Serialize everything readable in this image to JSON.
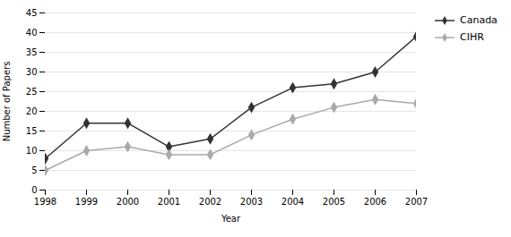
{
  "chart_data": {
    "type": "line",
    "x": [
      1998,
      1999,
      2000,
      2001,
      2002,
      2003,
      2004,
      2005,
      2006,
      2007
    ],
    "series": [
      {
        "name": "Canada",
        "color": "#333333",
        "marker": "diamond",
        "values": [
          8,
          17,
          17,
          11,
          13,
          21,
          26,
          27,
          30,
          39
        ]
      },
      {
        "name": "CIHR",
        "color": "#aaaaaa",
        "marker": "diamond",
        "values": [
          5,
          10,
          11,
          9,
          9,
          14,
          18,
          21,
          23,
          22
        ]
      }
    ],
    "xlabel": "Year",
    "ylabel": "Number of Papers",
    "xlim": [
      1998,
      2007
    ],
    "xticks": [
      1998,
      1999,
      2000,
      2001,
      2002,
      2003,
      2004,
      2005,
      2006,
      2007
    ],
    "ylim": [
      0,
      45
    ],
    "yticks": [
      0,
      5,
      10,
      15,
      20,
      25,
      30,
      35,
      40,
      45
    ],
    "grid": true,
    "legend": "right"
  }
}
